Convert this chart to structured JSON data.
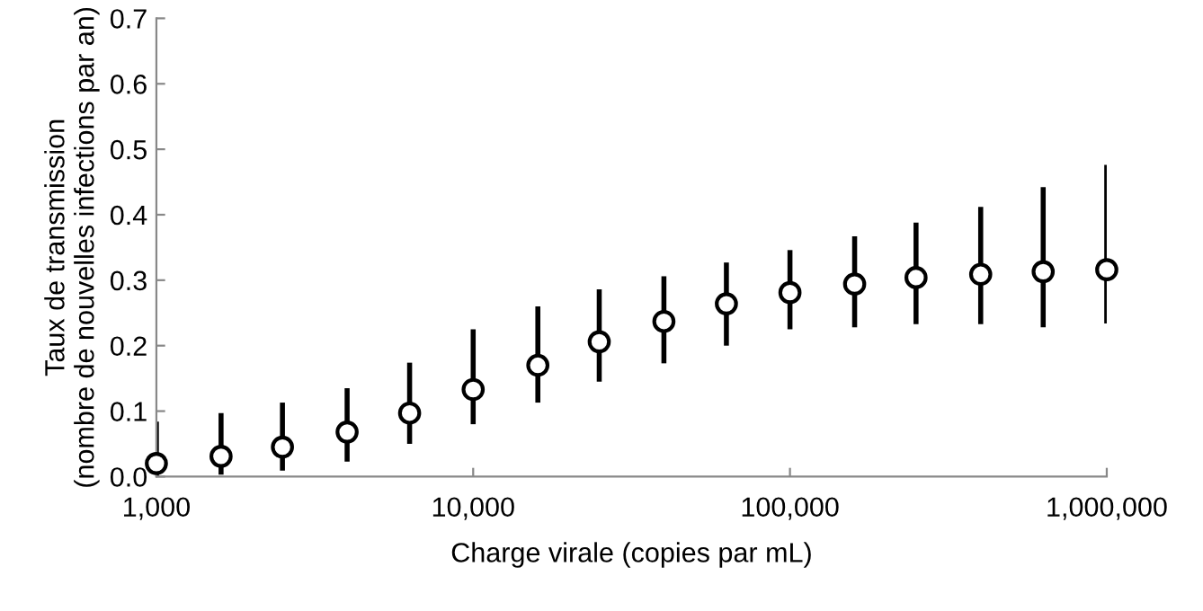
{
  "chart_data": {
    "type": "scatter",
    "xlabel": "Charge virale (copies par mL)",
    "ylabel": "Taux de transmission\n(nombre de nouvelles infections par an)",
    "x": [
      1000,
      1600,
      2500,
      4000,
      6300,
      10000,
      16000,
      25000,
      40000,
      63000,
      100000,
      160000,
      250000,
      400000,
      630000,
      1000000
    ],
    "values": [
      0.02,
      0.031,
      0.045,
      0.068,
      0.097,
      0.133,
      0.17,
      0.206,
      0.237,
      0.264,
      0.281,
      0.294,
      0.304,
      0.309,
      0.313,
      0.316
    ],
    "errors": [
      [
        0.0,
        0.084
      ],
      [
        0.003,
        0.097
      ],
      [
        0.009,
        0.113
      ],
      [
        0.023,
        0.135
      ],
      [
        0.05,
        0.174
      ],
      [
        0.08,
        0.225
      ],
      [
        0.113,
        0.26
      ],
      [
        0.145,
        0.286
      ],
      [
        0.173,
        0.306
      ],
      [
        0.2,
        0.327
      ],
      [
        0.225,
        0.346
      ],
      [
        0.228,
        0.367
      ],
      [
        0.233,
        0.388
      ],
      [
        0.233,
        0.412
      ],
      [
        0.228,
        0.442
      ],
      [
        0.234,
        0.476
      ]
    ],
    "color": "#000000",
    "marker": "circle",
    "log": "x",
    "grid": false,
    "legend": false,
    "xlim": [
      1000,
      1000000
    ],
    "xticks": [
      {
        "value": 1000,
        "label": "1,000"
      },
      {
        "value": 10000,
        "label": "10,000"
      },
      {
        "value": 100000,
        "label": "100,000"
      },
      {
        "value": 1000000,
        "label": "1,000,000"
      }
    ],
    "ylim": [
      0,
      0.7
    ],
    "yticks": [
      {
        "value": 0,
        "label": "0.0"
      },
      {
        "value": 0.1,
        "label": "0.1"
      },
      {
        "value": 0.2,
        "label": "0.2"
      },
      {
        "value": 0.3,
        "label": "0.3"
      },
      {
        "value": 0.4,
        "label": "0.4"
      },
      {
        "value": 0.5,
        "label": "0.5"
      },
      {
        "value": 0.6,
        "label": "0.6"
      },
      {
        "value": 0.7,
        "label": "0.7"
      }
    ]
  }
}
